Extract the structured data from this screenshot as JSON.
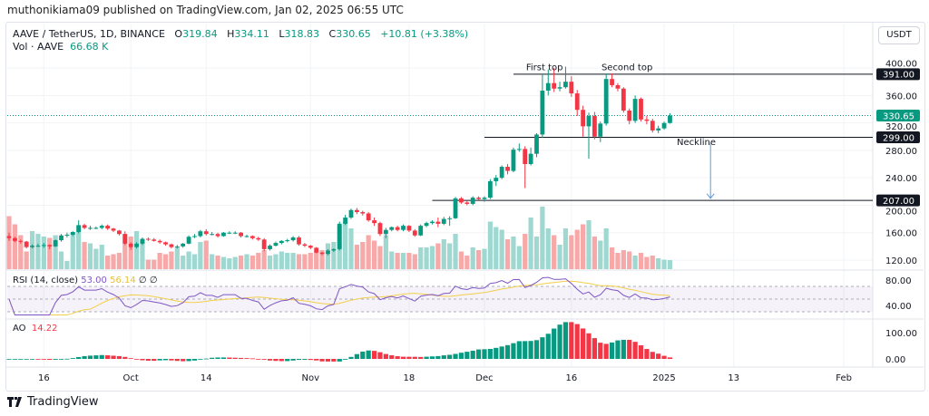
{
  "publisher_line": "muthonikiama09 published on TradingView.com, Jan 02, 2025 06:55 UTC",
  "symbol": {
    "title": "AAVE / TetherUS, 1D, BINANCE",
    "open_label": "O",
    "open": "319.84",
    "high_label": "H",
    "high": "334.11",
    "low_label": "L",
    "low": "318.83",
    "close_label": "C",
    "close": "330.65",
    "change": "+10.81 (+3.38%)"
  },
  "volume_legend": {
    "label": "Vol · AAVE",
    "value": "66.68 K"
  },
  "currency_button": "USDT",
  "colors": {
    "up": "#089981",
    "down": "#f23645",
    "vol_up": "#9ed8d0",
    "vol_down": "#f6a9a8",
    "rsi": "#7e57c2",
    "rsi_ma": "#f2cf4a",
    "label_bg": "#131722"
  },
  "rsi_legend": {
    "label": "RSI (14, close)",
    "rsi": "53.00",
    "ma": "56.14",
    "extra1": "∅",
    "extra2": "∅"
  },
  "ao_legend": {
    "label": "AO",
    "value": "14.22"
  },
  "logo_text": "TradingView",
  "chart_data": {
    "type": "candlestick",
    "title": "AAVE / TetherUS, 1D, BINANCE",
    "columns": [
      "date",
      "open",
      "high",
      "low",
      "close",
      "volume_k"
    ],
    "candles": [
      [
        "2024-09-10",
        155,
        160,
        148,
        152,
        390
      ],
      [
        "2024-09-11",
        152,
        154,
        146,
        148,
        330
      ],
      [
        "2024-09-12",
        148,
        150,
        144,
        147,
        250
      ],
      [
        "2024-09-13",
        147,
        148,
        137,
        139,
        130
      ],
      [
        "2024-09-14",
        139,
        143,
        137,
        141,
        280
      ],
      [
        "2024-09-15",
        141,
        144,
        139,
        141,
        260
      ],
      [
        "2024-09-16",
        141,
        145,
        138,
        142,
        240
      ],
      [
        "2024-09-17",
        142,
        143,
        136,
        140,
        230
      ],
      [
        "2024-09-18",
        140,
        150,
        139,
        149,
        250
      ],
      [
        "2024-09-19",
        149,
        158,
        147,
        156,
        130
      ],
      [
        "2024-09-20",
        156,
        160,
        153,
        157,
        60
      ],
      [
        "2024-09-21",
        157,
        162,
        155,
        161,
        270
      ],
      [
        "2024-09-22",
        161,
        178,
        159,
        171,
        310
      ],
      [
        "2024-09-23",
        171,
        173,
        165,
        167,
        200
      ],
      [
        "2024-09-24",
        167,
        170,
        164,
        167,
        190
      ],
      [
        "2024-09-25",
        167,
        169,
        165,
        167,
        150
      ],
      [
        "2024-09-26",
        167,
        172,
        165,
        170,
        180
      ],
      [
        "2024-09-27",
        170,
        172,
        164,
        166,
        100
      ],
      [
        "2024-09-28",
        166,
        167,
        161,
        163,
        110
      ],
      [
        "2024-09-29",
        163,
        164,
        156,
        158,
        120
      ],
      [
        "2024-09-30",
        158,
        162,
        142,
        144,
        260
      ],
      [
        "2024-10-01",
        144,
        146,
        135,
        139,
        240
      ],
      [
        "2024-10-02",
        139,
        146,
        137,
        144,
        280
      ],
      [
        "2024-10-03",
        144,
        153,
        142,
        151,
        220
      ],
      [
        "2024-10-04",
        151,
        153,
        148,
        150,
        70
      ],
      [
        "2024-10-05",
        150,
        152,
        147,
        148,
        70
      ],
      [
        "2024-10-06",
        148,
        150,
        144,
        146,
        120
      ],
      [
        "2024-10-07",
        146,
        147,
        141,
        143,
        110
      ],
      [
        "2024-10-08",
        143,
        144,
        137,
        139,
        130
      ],
      [
        "2024-10-09",
        139,
        142,
        137,
        140,
        160
      ],
      [
        "2024-10-10",
        140,
        145,
        138,
        144,
        100
      ],
      [
        "2024-10-11",
        144,
        156,
        143,
        154,
        130
      ],
      [
        "2024-10-12",
        154,
        158,
        152,
        155,
        110
      ],
      [
        "2024-10-13",
        155,
        164,
        153,
        162,
        200
      ],
      [
        "2024-10-14",
        162,
        165,
        156,
        158,
        210
      ],
      [
        "2024-10-15",
        158,
        161,
        156,
        158,
        110
      ],
      [
        "2024-10-16",
        158,
        160,
        153,
        155,
        100
      ],
      [
        "2024-10-17",
        155,
        161,
        154,
        160,
        90
      ],
      [
        "2024-10-18",
        160,
        162,
        158,
        160,
        80
      ],
      [
        "2024-10-19",
        160,
        162,
        158,
        160,
        90
      ],
      [
        "2024-10-20",
        160,
        161,
        153,
        155,
        100
      ],
      [
        "2024-10-21",
        155,
        157,
        153,
        155,
        110
      ],
      [
        "2024-10-22",
        155,
        156,
        150,
        152,
        100
      ],
      [
        "2024-10-23",
        152,
        154,
        148,
        150,
        120
      ],
      [
        "2024-10-24",
        150,
        152,
        133,
        136,
        140
      ],
      [
        "2024-10-25",
        136,
        143,
        134,
        141,
        100
      ],
      [
        "2024-10-26",
        141,
        147,
        140,
        145,
        110
      ],
      [
        "2024-10-27",
        145,
        149,
        143,
        148,
        130
      ],
      [
        "2024-10-28",
        148,
        151,
        146,
        149,
        120
      ],
      [
        "2024-10-29",
        149,
        155,
        147,
        153,
        120
      ],
      [
        "2024-10-30",
        153,
        155,
        141,
        143,
        110
      ],
      [
        "2024-10-31",
        143,
        145,
        139,
        141,
        110
      ],
      [
        "2024-11-01",
        141,
        142,
        136,
        138,
        120
      ],
      [
        "2024-11-02",
        138,
        139,
        130,
        131,
        130
      ],
      [
        "2024-11-03",
        131,
        132,
        127,
        129,
        140
      ],
      [
        "2024-11-04",
        129,
        136,
        127,
        134,
        190
      ],
      [
        "2024-11-05",
        134,
        137,
        132,
        136,
        200
      ],
      [
        "2024-11-06",
        136,
        176,
        134,
        173,
        320
      ],
      [
        "2024-11-07",
        173,
        186,
        171,
        182,
        350
      ],
      [
        "2024-11-08",
        182,
        195,
        180,
        193,
        300
      ],
      [
        "2024-11-09",
        193,
        196,
        187,
        190,
        180
      ],
      [
        "2024-11-10",
        190,
        192,
        185,
        188,
        200
      ],
      [
        "2024-11-11",
        188,
        190,
        176,
        178,
        250
      ],
      [
        "2024-11-12",
        178,
        182,
        170,
        174,
        210
      ],
      [
        "2024-11-13",
        174,
        176,
        155,
        158,
        170
      ],
      [
        "2024-11-14",
        158,
        167,
        152,
        164,
        250
      ],
      [
        "2024-11-15",
        164,
        169,
        162,
        168,
        130
      ],
      [
        "2024-11-16",
        168,
        170,
        162,
        164,
        120
      ],
      [
        "2024-11-17",
        164,
        172,
        162,
        170,
        120
      ],
      [
        "2024-11-18",
        170,
        171,
        161,
        163,
        120
      ],
      [
        "2024-11-19",
        163,
        165,
        154,
        156,
        110
      ],
      [
        "2024-11-20",
        156,
        172,
        155,
        170,
        160
      ],
      [
        "2024-11-21",
        170,
        176,
        168,
        174,
        160
      ],
      [
        "2024-11-22",
        174,
        178,
        172,
        176,
        170
      ],
      [
        "2024-11-23",
        176,
        182,
        168,
        173,
        190
      ],
      [
        "2024-11-24",
        173,
        183,
        171,
        180,
        220
      ],
      [
        "2024-11-25",
        180,
        184,
        170,
        181,
        190
      ],
      [
        "2024-11-26",
        181,
        212,
        180,
        210,
        260
      ],
      [
        "2024-11-27",
        210,
        212,
        202,
        204,
        130
      ],
      [
        "2024-11-28",
        204,
        206,
        200,
        202,
        100
      ],
      [
        "2024-11-29",
        202,
        213,
        200,
        211,
        160
      ],
      [
        "2024-11-30",
        211,
        213,
        207,
        209,
        140
      ],
      [
        "2024-12-01",
        209,
        213,
        205,
        211,
        150
      ],
      [
        "2024-12-02",
        211,
        238,
        209,
        235,
        350
      ],
      [
        "2024-12-03",
        235,
        244,
        228,
        240,
        310
      ],
      [
        "2024-12-04",
        240,
        258,
        238,
        256,
        290
      ],
      [
        "2024-12-05",
        256,
        260,
        245,
        250,
        220
      ],
      [
        "2024-12-06",
        250,
        284,
        248,
        281,
        240
      ],
      [
        "2024-12-07",
        281,
        290,
        278,
        282,
        170
      ],
      [
        "2024-12-08",
        282,
        286,
        225,
        260,
        260
      ],
      [
        "2024-12-09",
        260,
        284,
        258,
        275,
        380
      ],
      [
        "2024-12-10",
        275,
        305,
        270,
        303,
        240
      ],
      [
        "2024-12-11",
        303,
        392,
        298,
        367,
        460
      ],
      [
        "2024-12-12",
        367,
        398,
        360,
        378,
        300
      ],
      [
        "2024-12-13",
        378,
        400,
        365,
        370,
        250
      ],
      [
        "2024-12-14",
        370,
        380,
        366,
        372,
        180
      ],
      [
        "2024-12-15",
        372,
        402,
        370,
        380,
        300
      ],
      [
        "2024-12-16",
        380,
        388,
        358,
        363,
        250
      ],
      [
        "2024-12-17",
        363,
        368,
        330,
        339,
        290
      ],
      [
        "2024-12-18",
        339,
        345,
        300,
        315,
        330
      ],
      [
        "2024-12-19",
        315,
        335,
        268,
        330,
        360
      ],
      [
        "2024-12-20",
        330,
        336,
        296,
        300,
        240
      ],
      [
        "2024-12-21",
        300,
        322,
        292,
        319,
        210
      ],
      [
        "2024-12-22",
        319,
        392,
        316,
        384,
        300
      ],
      [
        "2024-12-23",
        384,
        392,
        372,
        375,
        160
      ],
      [
        "2024-12-24",
        375,
        378,
        366,
        370,
        120
      ],
      [
        "2024-12-25",
        370,
        372,
        335,
        338,
        140
      ],
      [
        "2024-12-26",
        338,
        341,
        318,
        323,
        130
      ],
      [
        "2024-12-27",
        323,
        360,
        320,
        355,
        100
      ],
      [
        "2024-12-28",
        355,
        357,
        322,
        325,
        120
      ],
      [
        "2024-12-29",
        325,
        330,
        318,
        323,
        90
      ],
      [
        "2024-12-30",
        323,
        326,
        306,
        309,
        100
      ],
      [
        "2024-12-31",
        309,
        316,
        305,
        312,
        80
      ],
      [
        "2025-01-01",
        312,
        322,
        310,
        319.84,
        70
      ],
      [
        "2025-01-02",
        319.84,
        334.11,
        318.83,
        330.65,
        66.68
      ]
    ],
    "price_axis": {
      "ticks": [
        120,
        160,
        200,
        240,
        280,
        320,
        360,
        400
      ],
      "ylim": [
        110,
        440
      ]
    },
    "rsi_axis": {
      "ticks": [
        40,
        80
      ],
      "bands": [
        30,
        70
      ]
    },
    "ao_axis": {
      "ticks": [
        "0.00",
        "100.00"
      ]
    },
    "time_ticks": [
      {
        "date": "2024-09-16",
        "label": "16"
      },
      {
        "date": "2024-10-01",
        "label": "Oct"
      },
      {
        "date": "2024-10-14",
        "label": "14"
      },
      {
        "date": "2024-11-01",
        "label": "Nov"
      },
      {
        "date": "2024-11-18",
        "label": "18"
      },
      {
        "date": "2024-12-01",
        "label": "Dec"
      },
      {
        "date": "2024-12-16",
        "label": "16"
      },
      {
        "date": "2025-01-01",
        "label": "2025"
      },
      {
        "date": "2025-01-13",
        "label": "13"
      },
      {
        "date": "2025-02-01",
        "label": "Feb"
      }
    ],
    "levels": [
      {
        "price": 391,
        "label": "391.00",
        "from": "2024-12-06"
      },
      {
        "price": 299,
        "label": "299.00",
        "from": "2024-12-01"
      },
      {
        "price": 207,
        "label": "207.00",
        "from": "2024-11-22"
      }
    ],
    "last_price": {
      "price": 330.65,
      "label": "330.65"
    },
    "annotations": [
      {
        "text": "First top",
        "date": "2024-12-11",
        "price": 402
      },
      {
        "text": "Second top",
        "date": "2024-12-24",
        "price": 402
      },
      {
        "text": "Neckline",
        "date": "2025-01-06",
        "price": 293
      }
    ],
    "arrow": {
      "date": "2025-01-09",
      "from_price": 291,
      "to_price": 210
    }
  }
}
